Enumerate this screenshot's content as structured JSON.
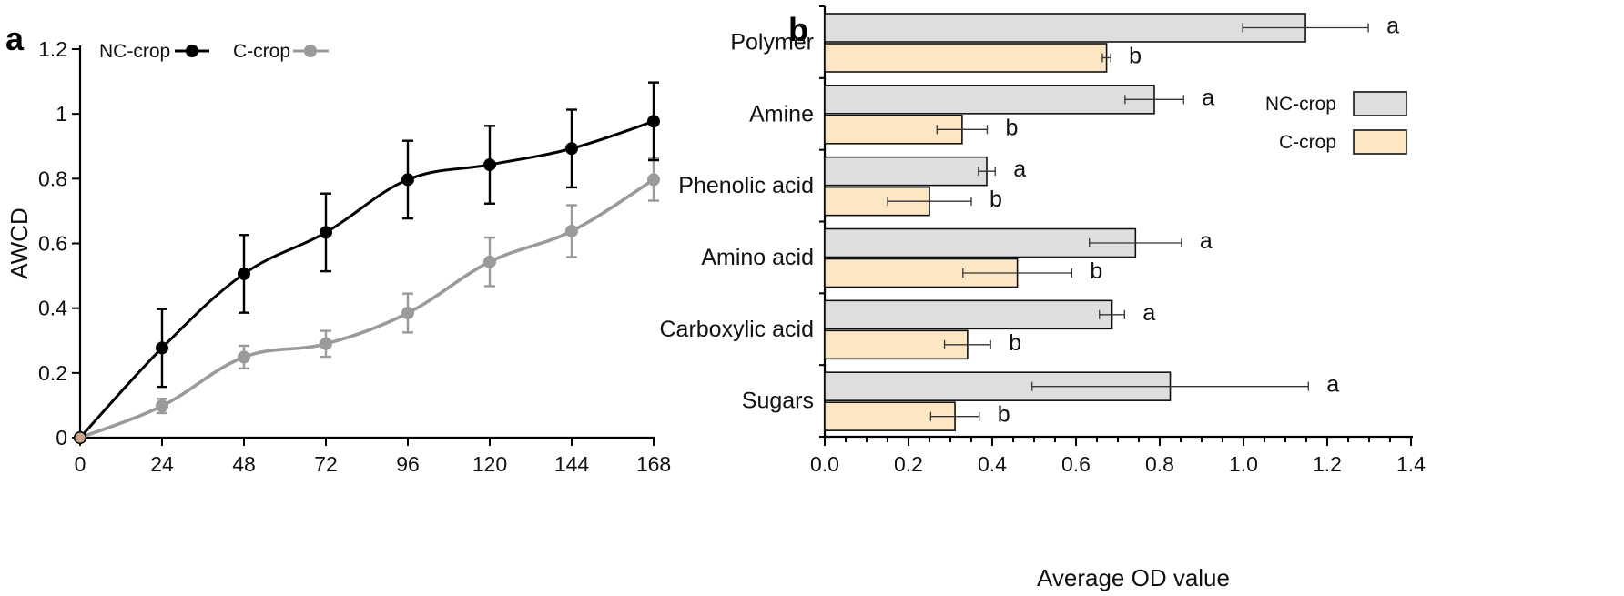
{
  "chart_data": [
    {
      "type": "line",
      "panel": "a",
      "title": "",
      "xlabel": "",
      "ylabel": "AWCD",
      "x": [
        0,
        24,
        48,
        72,
        96,
        120,
        144,
        168
      ],
      "xticks": [
        "0",
        "24",
        "48",
        "72",
        "96",
        "120",
        "144",
        "168"
      ],
      "yticks": [
        "0",
        "0.2",
        "0.4",
        "0.6",
        "0.8",
        "1",
        "1.2"
      ],
      "xlim": [
        0,
        168
      ],
      "ylim": [
        0,
        1.2
      ],
      "legend_position": "top-left",
      "series": [
        {
          "name": "NC-crop",
          "color": "#000000",
          "values": [
            0,
            0.277,
            0.506,
            0.634,
            0.797,
            0.843,
            0.893,
            0.977
          ],
          "errors": [
            0,
            0.12,
            0.12,
            0.12,
            0.12,
            0.12,
            0.12,
            0.12
          ]
        },
        {
          "name": "C-crop",
          "color": "#9a9a9a",
          "values": [
            0,
            0.098,
            0.249,
            0.29,
            0.385,
            0.543,
            0.638,
            0.797
          ],
          "errors": [
            0,
            0.022,
            0.035,
            0.04,
            0.06,
            0.075,
            0.08,
            0.065
          ]
        }
      ]
    },
    {
      "type": "bar",
      "orientation": "horizontal",
      "panel": "b",
      "title": "",
      "xlabel": "Average OD value",
      "ylabel": "",
      "categories": [
        "Polymer",
        "Amine",
        "Phenolic acid",
        "Amino acid",
        "Carboxylic acid",
        "Sugars"
      ],
      "xticks": [
        "0.0",
        "0.2",
        "0.4",
        "0.6",
        "0.8",
        "1.0",
        "1.2",
        "1.4"
      ],
      "xlim": [
        0,
        1.4
      ],
      "legend_position": "top-right",
      "series": [
        {
          "name": "NC-crop",
          "color": "#dedede",
          "values": [
            1.148,
            0.787,
            0.387,
            0.742,
            0.686,
            0.825
          ],
          "errors": [
            0.15,
            0.07,
            0.02,
            0.11,
            0.03,
            0.33
          ],
          "labels": [
            "a",
            "a",
            "a",
            "a",
            "a",
            "a"
          ]
        },
        {
          "name": "C-crop",
          "color": "#fde6c4",
          "values": [
            0.673,
            0.328,
            0.25,
            0.46,
            0.341,
            0.311
          ],
          "errors": [
            0.01,
            0.06,
            0.1,
            0.13,
            0.055,
            0.058
          ],
          "labels": [
            "b",
            "b",
            "b",
            "b",
            "b",
            "b"
          ]
        }
      ]
    }
  ]
}
